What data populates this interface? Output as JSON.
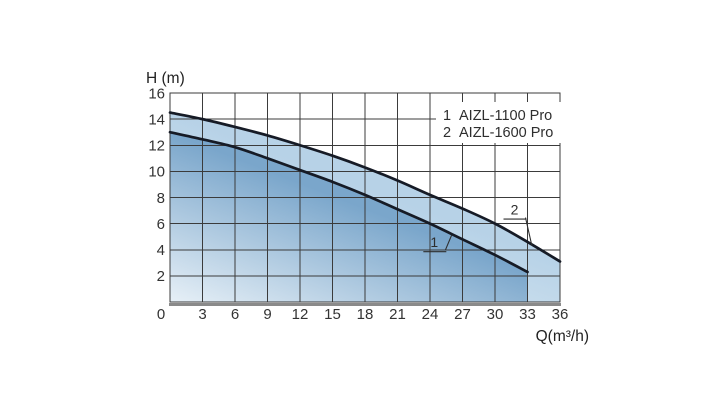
{
  "chart_data": {
    "type": "area",
    "title": "",
    "xlabel": "Q(m³/h)",
    "ylabel": "H (m)",
    "xlim": [
      0,
      36
    ],
    "ylim": [
      0,
      16
    ],
    "x_ticks": [
      0,
      3,
      6,
      9,
      12,
      15,
      18,
      21,
      24,
      27,
      30,
      33,
      36
    ],
    "y_ticks": [
      2,
      4,
      6,
      8,
      10,
      12,
      14,
      16
    ],
    "grid": {
      "on": true,
      "x_step": 3,
      "y_step": 2
    },
    "legend": {
      "position": "top-right-inside",
      "items": [
        {
          "index": "1",
          "label": "AIZL-1100 Pro"
        },
        {
          "index": "2",
          "label": "AIZL-1600 Pro"
        }
      ]
    },
    "series": [
      {
        "name": "AIZL-1100 Pro",
        "curve_number": "1",
        "x": [
          0,
          3,
          6,
          9,
          12,
          15,
          18,
          21,
          24,
          27,
          30,
          33
        ],
        "y": [
          13.0,
          12.45,
          11.85,
          11.0,
          10.1,
          9.2,
          8.2,
          7.1,
          6.0,
          4.8,
          3.6,
          2.3
        ],
        "fill_top": "#7aa6cb",
        "fill_bottom": "#e7f0f7"
      },
      {
        "name": "AIZL-1600 Pro",
        "curve_number": "2",
        "x": [
          0,
          3,
          6,
          9,
          12,
          15,
          18,
          21,
          24,
          27,
          30,
          33,
          36
        ],
        "y": [
          14.5,
          14.0,
          13.4,
          12.75,
          12.0,
          11.2,
          10.3,
          9.3,
          8.2,
          7.15,
          6.0,
          4.6,
          3.1
        ],
        "fill_top": "#b7d2e7",
        "fill_bottom": "#e9f2f8"
      }
    ],
    "annotations": [
      {
        "text": "1",
        "series_index": 0,
        "q": 24.4,
        "h": 4.5
      },
      {
        "text": "2",
        "series_index": 1,
        "q": 31.8,
        "h": 7.0
      }
    ],
    "colors": {
      "curve": "#161b26",
      "grid": "#3b3b3b",
      "border": "#3b3b3b",
      "axis_baseline": "#8a8a8a",
      "tick_text": "#333333",
      "axis_title_text": "#222222",
      "legend_text": "#2e2e2e",
      "legend_bg": "#ffffff",
      "background": "#ffffff"
    }
  }
}
